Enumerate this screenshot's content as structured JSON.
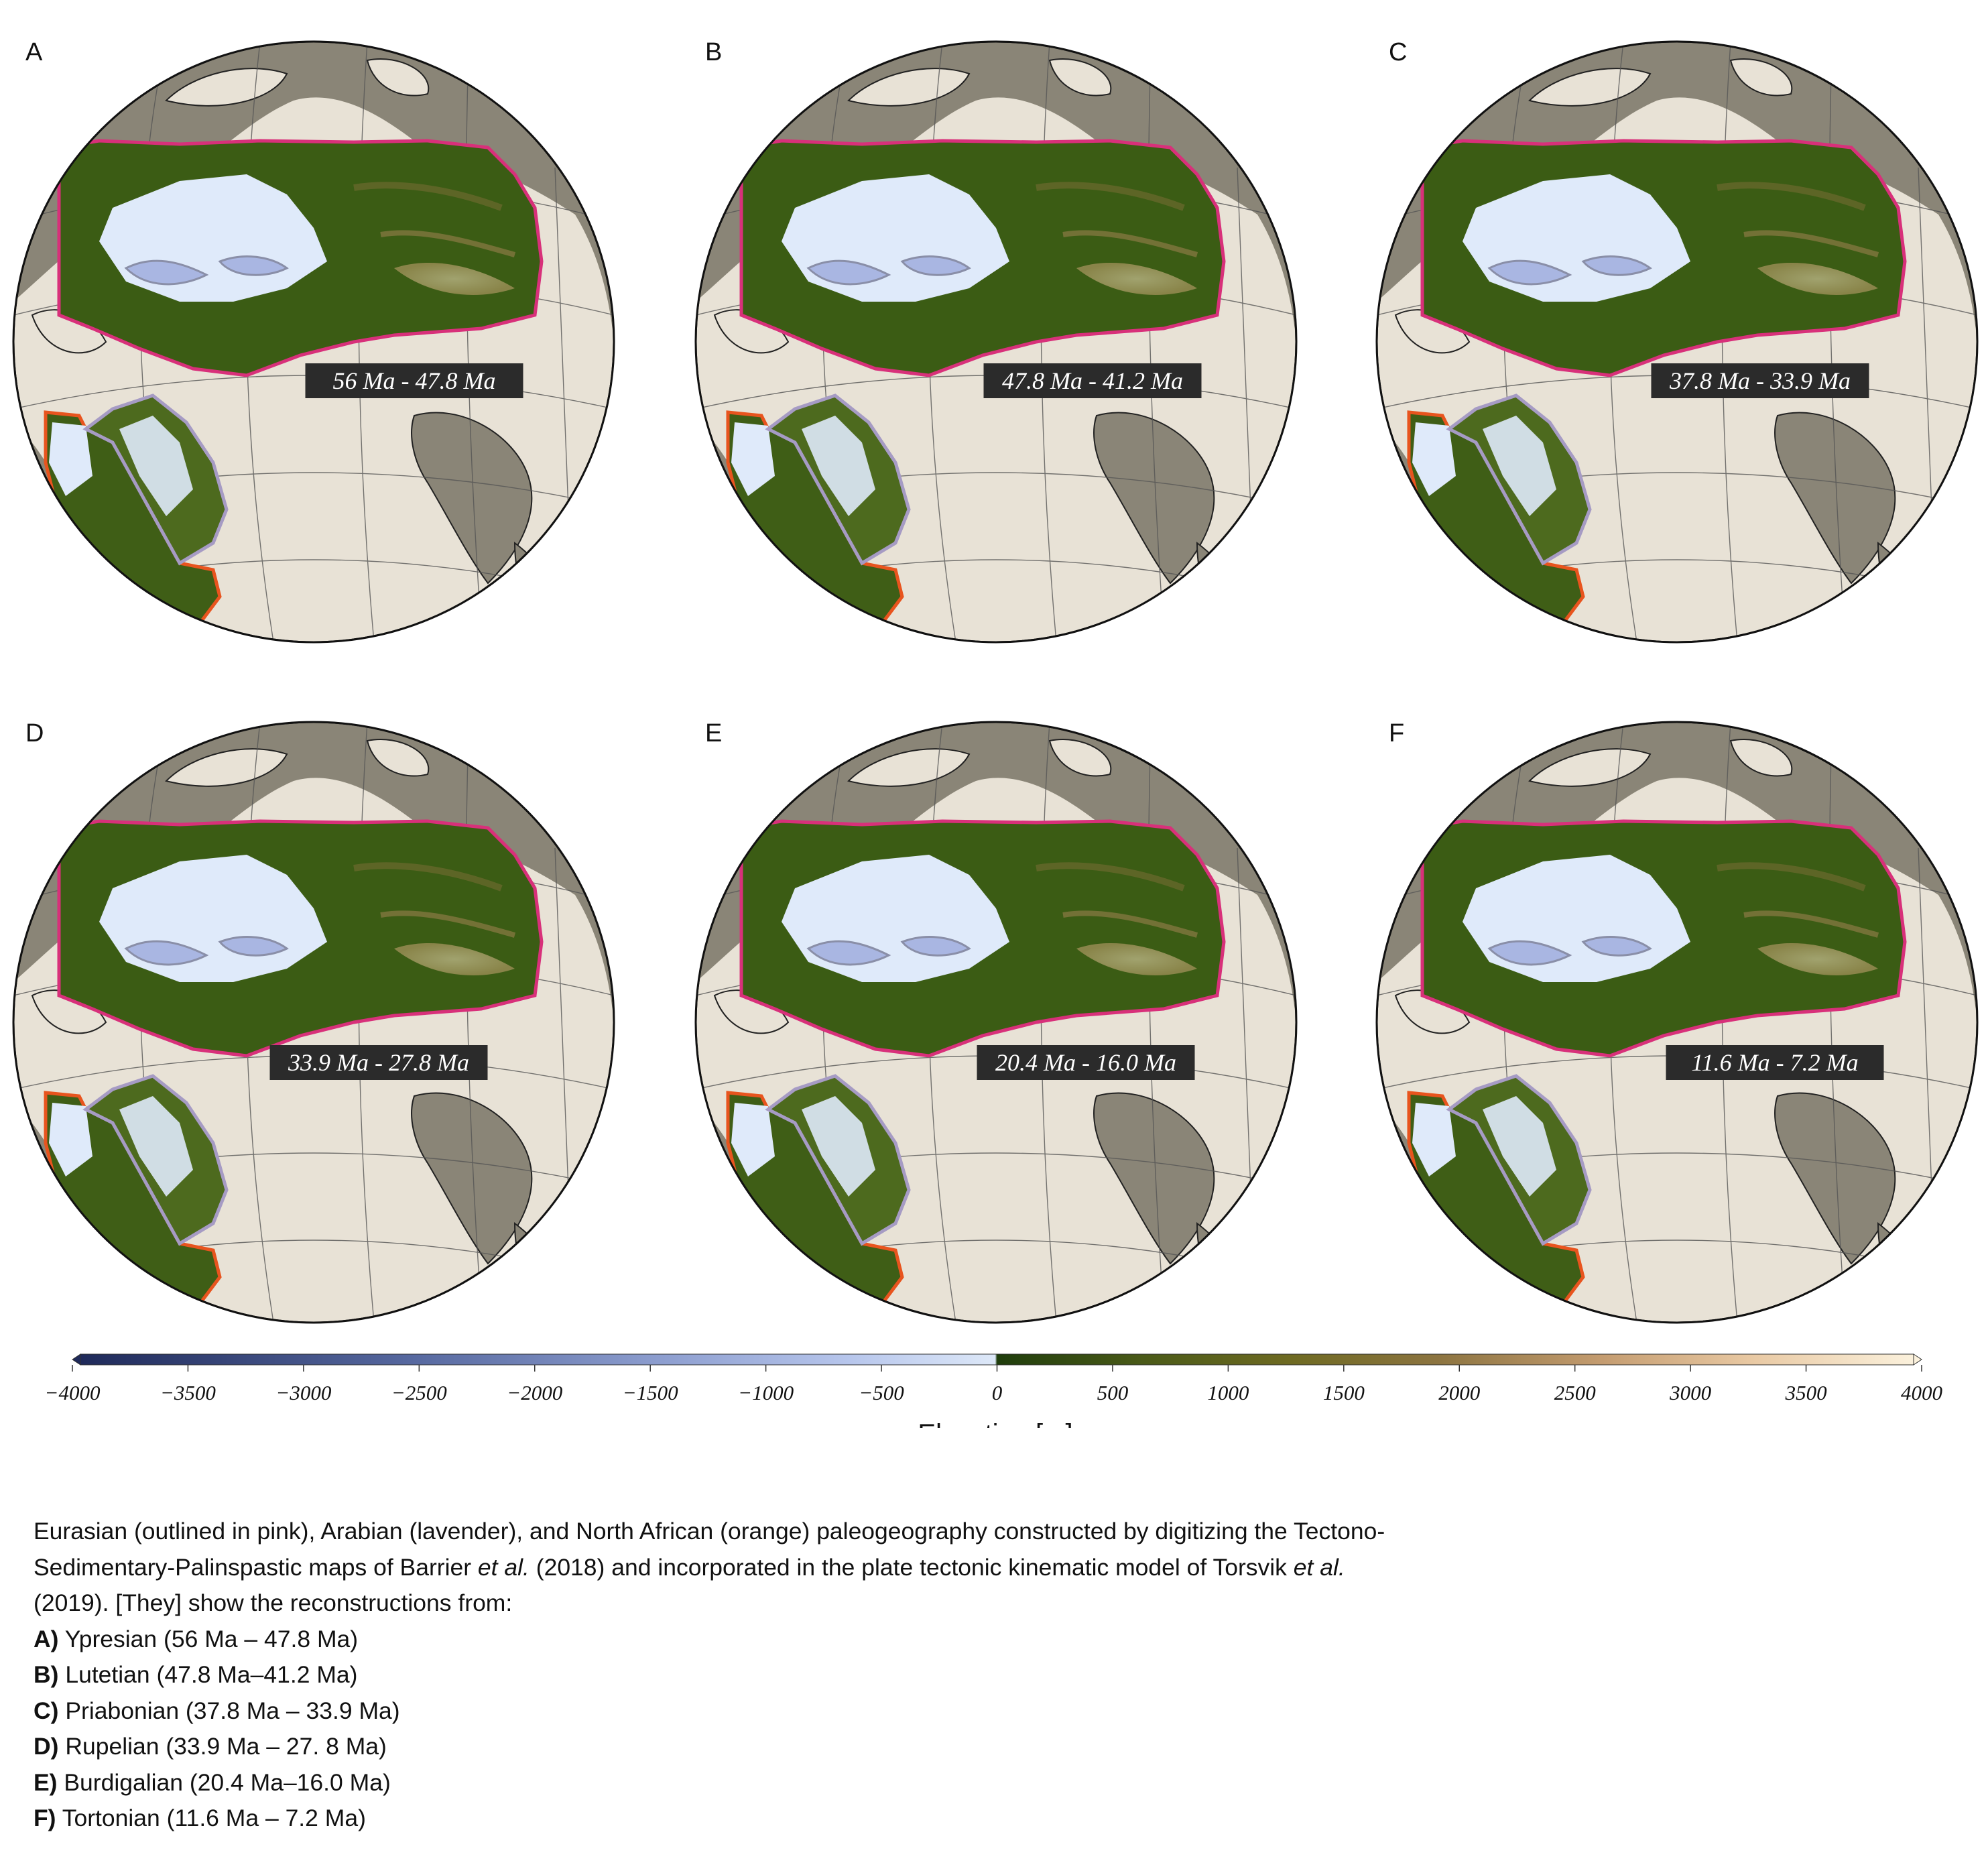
{
  "panels": [
    {
      "letter": "A",
      "age": "56 Ma - 47.8 Ma"
    },
    {
      "letter": "B",
      "age": "47.8 Ma - 41.2 Ma"
    },
    {
      "letter": "C",
      "age": "37.8 Ma - 33.9 Ma"
    },
    {
      "letter": "D",
      "age": "33.9 Ma - 27.8 Ma"
    },
    {
      "letter": "E",
      "age": "20.4 Ma - 16.0 Ma"
    },
    {
      "letter": "F",
      "age": "11.6 Ma - 7.2 Ma"
    }
  ],
  "colorbar": {
    "label": "Elevation [m]",
    "ticks": [
      "−4000",
      "−3500",
      "−3000",
      "−2500",
      "−2000",
      "−1500",
      "−1000",
      "−500",
      "0",
      "500",
      "1000",
      "1500",
      "2000",
      "2500",
      "3000",
      "3500",
      "4000"
    ],
    "range": [
      -4000,
      4000
    ],
    "colors": {
      "deep": "#1f2a5a",
      "shallow": "#dde8f8",
      "lowland": "#2a4a10",
      "mid": "#7d6a30",
      "high": "#fbf1dc"
    }
  },
  "outline_colors": {
    "eurasian": "#d8307a",
    "arabian": "#a69bc4",
    "north_african": "#e8541e"
  },
  "caption": {
    "intro_1": "Eurasian (outlined in pink), Arabian (lavender), and North African (orange) paleogeography constructed by digitizing the Tectono-",
    "intro_2a": "Sedimentary-Palinspastic maps of  Barrier ",
    "etal_1": "et al.",
    "intro_2b": " (2018) and incorporated in the plate tectonic kinematic model of Torsvik ",
    "etal_2": "et al.",
    "intro_3": "(2019). [They] show the reconstructions from:",
    "items": [
      {
        "key": "A)",
        "text": " Ypresian (56 Ma – 47.8 Ma)"
      },
      {
        "key": "B)",
        "text": " Lutetian (47.8 Ma–41.2 Ma)"
      },
      {
        "key": "C)",
        "text": " Priabonian (37.8 Ma – 33.9 Ma)"
      },
      {
        "key": "D)",
        "text": " Rupelian (33.9 Ma – 27. 8 Ma)"
      },
      {
        "key": "E)",
        "text": " Burdigalian (20.4 Ma–16.0 Ma)"
      },
      {
        "key": "F)",
        "text": " Tortonian (11.6 Ma – 7.2 Ma)"
      }
    ]
  }
}
